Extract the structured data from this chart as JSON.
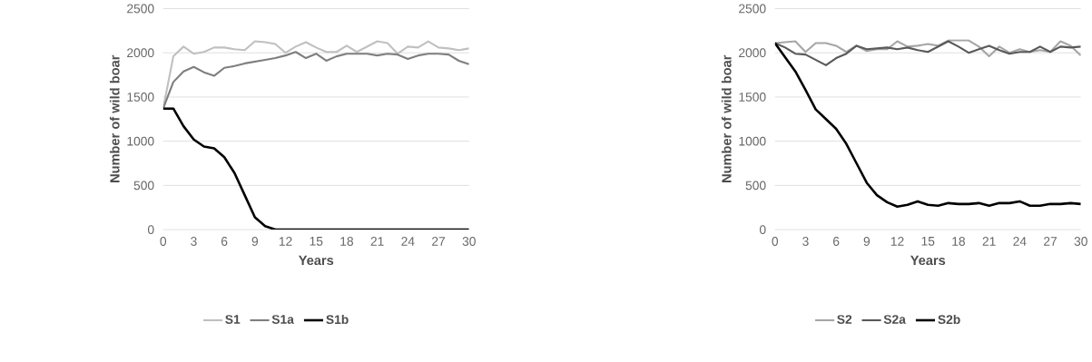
{
  "chart_data": [
    {
      "type": "line",
      "xlabel": "Years",
      "ylabel": "Number of wild boar",
      "x": [
        0,
        1,
        2,
        3,
        4,
        5,
        6,
        7,
        8,
        9,
        10,
        11,
        12,
        13,
        14,
        15,
        16,
        17,
        18,
        19,
        20,
        21,
        22,
        23,
        24,
        25,
        26,
        27,
        28,
        29,
        30
      ],
      "xlim": [
        0,
        30
      ],
      "xticks": [
        0,
        3,
        6,
        9,
        12,
        15,
        18,
        21,
        24,
        27,
        30
      ],
      "ylim": [
        0,
        2500
      ],
      "yticks": [
        0,
        500,
        1000,
        1500,
        2000,
        2500
      ],
      "grid": "y",
      "legend": "bottom",
      "series": [
        {
          "name": "S1",
          "color": "#c0c0c0",
          "values": [
            1370,
            1960,
            2070,
            1990,
            2010,
            2060,
            2060,
            2040,
            2030,
            2130,
            2120,
            2100,
            2000,
            2070,
            2120,
            2060,
            2010,
            2010,
            2080,
            2010,
            2070,
            2130,
            2110,
            1990,
            2070,
            2060,
            2130,
            2060,
            2050,
            2030,
            2050
          ]
        },
        {
          "name": "S1a",
          "color": "#7f7f7f",
          "values": [
            1370,
            1670,
            1790,
            1840,
            1780,
            1740,
            1830,
            1850,
            1880,
            1900,
            1920,
            1940,
            1970,
            2010,
            1940,
            1990,
            1910,
            1960,
            1990,
            1990,
            1990,
            1970,
            1990,
            1980,
            1930,
            1970,
            1990,
            1990,
            1980,
            1910,
            1870
          ]
        },
        {
          "name": "S1b",
          "color": "#000000",
          "values": [
            1370,
            1370,
            1170,
            1020,
            940,
            920,
            820,
            640,
            390,
            140,
            40,
            0,
            0,
            0,
            0,
            0,
            0,
            0,
            0,
            0,
            0,
            0,
            0,
            0,
            0,
            0,
            0,
            0,
            0,
            0,
            0
          ]
        }
      ]
    },
    {
      "type": "line",
      "xlabel": "Years",
      "ylabel": "Number of wild boar",
      "x": [
        0,
        1,
        2,
        3,
        4,
        5,
        6,
        7,
        8,
        9,
        10,
        11,
        12,
        13,
        14,
        15,
        16,
        17,
        18,
        19,
        20,
        21,
        22,
        23,
        24,
        25,
        26,
        27,
        28,
        29,
        30
      ],
      "xlim": [
        0,
        30
      ],
      "xticks": [
        0,
        3,
        6,
        9,
        12,
        15,
        18,
        21,
        24,
        27,
        30
      ],
      "ylim": [
        0,
        2500
      ],
      "yticks": [
        0,
        500,
        1000,
        1500,
        2000,
        2500
      ],
      "grid": "y",
      "legend": "bottom",
      "series": [
        {
          "name": "S2",
          "color": "#a6a6a6",
          "values": [
            2110,
            2120,
            2130,
            2010,
            2110,
            2110,
            2080,
            2010,
            2080,
            2020,
            2040,
            2040,
            2130,
            2070,
            2080,
            2100,
            2080,
            2140,
            2140,
            2140,
            2070,
            1960,
            2070,
            2000,
            2040,
            2010,
            2030,
            2010,
            2130,
            2080,
            1970
          ]
        },
        {
          "name": "S2a",
          "color": "#595959",
          "values": [
            2110,
            2060,
            1990,
            1980,
            1920,
            1860,
            1940,
            1990,
            2080,
            2040,
            2050,
            2060,
            2040,
            2060,
            2030,
            2010,
            2070,
            2130,
            2070,
            2000,
            2040,
            2080,
            2030,
            1990,
            2010,
            2010,
            2070,
            2010,
            2070,
            2060,
            2070
          ]
        },
        {
          "name": "S2b",
          "color": "#000000",
          "values": [
            2110,
            1950,
            1790,
            1580,
            1360,
            1250,
            1140,
            970,
            750,
            530,
            390,
            310,
            260,
            280,
            320,
            280,
            270,
            300,
            290,
            290,
            300,
            270,
            300,
            300,
            320,
            270,
            270,
            290,
            290,
            300,
            290
          ]
        }
      ]
    }
  ]
}
